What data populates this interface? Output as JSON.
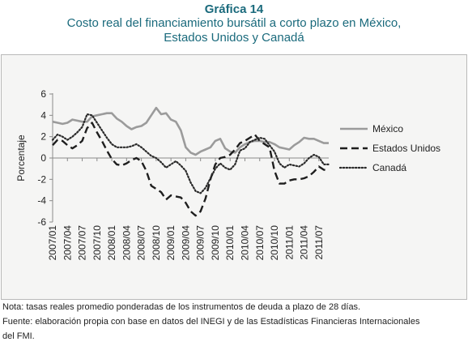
{
  "header": {
    "title": "Gráfica 14",
    "subtitle_line1": "Costo real del financiamiento bursátil a corto plazo en México,",
    "subtitle_line2": "Estados Unidos y Canadá"
  },
  "footer": {
    "note": "Nota: tasas reales promedio ponderadas de los instrumentos de deuda a plazo de 28 días.",
    "source_line1": "Fuente: elaboración propia con base en datos del INEGI y de las Estadísticas Financieras Internacionales",
    "source_line2": "del FMI."
  },
  "chart_data": {
    "type": "line",
    "title": "",
    "xlabel": "",
    "ylabel": "Porcentaje",
    "ylim": [
      -6,
      6
    ],
    "yticks": [
      6,
      4,
      2,
      0,
      -2,
      -4,
      -6
    ],
    "grid": false,
    "legend_position": "right",
    "x_tick_labels": [
      "2007/01",
      "2007/04",
      "2007/07",
      "2007/10",
      "2008/01",
      "2008/04",
      "2008/07",
      "2008/10",
      "2009/01",
      "2009/04",
      "2009/07",
      "2009/10",
      "2010/01",
      "2010/04",
      "2010/07",
      "2010/10",
      "2011/01",
      "2011/04",
      "2011/07"
    ],
    "x_start": "2007/01",
    "x_end": "2011/09",
    "series": [
      {
        "name": "México",
        "color": "#9b9b9b",
        "style": "solid",
        "values": [
          3.4,
          3.3,
          3.2,
          3.3,
          3.6,
          3.5,
          3.4,
          3.4,
          3.9,
          4.0,
          4.1,
          4.2,
          4.2,
          3.7,
          3.4,
          3.0,
          2.7,
          2.9,
          3.0,
          3.3,
          4.0,
          4.7,
          4.1,
          4.2,
          3.6,
          3.4,
          2.6,
          1.0,
          0.5,
          0.3,
          0.6,
          0.8,
          1.0,
          1.6,
          1.8,
          0.9,
          0.6,
          0.5,
          1.0,
          1.3,
          1.5,
          1.6,
          1.6,
          1.5,
          1.5,
          1.3,
          1.0,
          0.9,
          0.8,
          1.2,
          1.5,
          1.9,
          1.8,
          1.8,
          1.6,
          1.4,
          1.4
        ]
      },
      {
        "name": "Estados Unidos",
        "color": "#1e1e1e",
        "style": "dashed",
        "values": [
          1.2,
          1.7,
          1.6,
          1.2,
          0.9,
          1.2,
          1.6,
          2.8,
          3.3,
          2.4,
          1.6,
          0.7,
          -0.1,
          -0.6,
          -0.7,
          -0.5,
          -0.2,
          0.0,
          -0.3,
          -1.2,
          -2.6,
          -2.9,
          -3.2,
          -3.9,
          -3.5,
          -3.6,
          -3.7,
          -4.2,
          -5.0,
          -5.4,
          -5.0,
          -3.8,
          -2.0,
          -0.6,
          0.0,
          0.1,
          0.3,
          0.8,
          1.4,
          1.6,
          1.9,
          2.2,
          1.6,
          1.3,
          1.0,
          -1.2,
          -2.4,
          -2.4,
          -2.1,
          -2.0,
          -2.0,
          -1.9,
          -1.7,
          -1.3,
          -0.8,
          -1.1,
          -1.2
        ]
      },
      {
        "name": "Canadá",
        "color": "#2a2a2a",
        "style": "dotted",
        "values": [
          1.7,
          2.2,
          2.0,
          1.7,
          2.0,
          2.4,
          2.9,
          4.1,
          4.0,
          3.3,
          2.6,
          1.9,
          1.3,
          1.0,
          1.0,
          1.0,
          1.1,
          1.3,
          1.0,
          0.6,
          0.2,
          0.0,
          -0.4,
          -0.9,
          -0.6,
          -0.3,
          -0.7,
          -1.2,
          -2.3,
          -3.1,
          -3.3,
          -2.8,
          -1.9,
          -1.0,
          -0.5,
          -0.9,
          -1.1,
          -0.6,
          0.7,
          0.9,
          1.5,
          1.7,
          1.9,
          1.8,
          1.2,
          0.6,
          -0.5,
          -0.9,
          -0.6,
          -0.7,
          -0.8,
          -0.5,
          0.0,
          0.3,
          0.1,
          -0.6,
          -0.6
        ]
      }
    ]
  }
}
